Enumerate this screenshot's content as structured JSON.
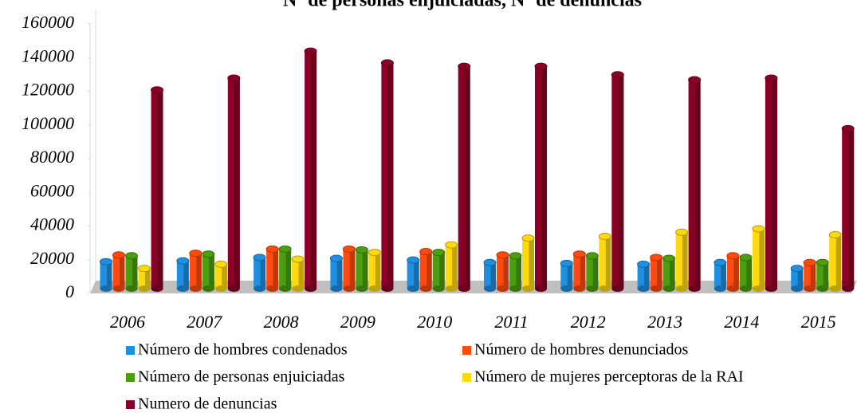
{
  "chart_data": {
    "type": "bar3d",
    "title": "Nº de personas enjuiciadas, Nº de denuncias",
    "categories": [
      "2006",
      "2007",
      "2008",
      "2009",
      "2010",
      "2011",
      "2012",
      "2013",
      "2014",
      "2015"
    ],
    "series": [
      {
        "name": "Número de hombres condenados",
        "color": "#1f8fe0",
        "values": [
          16000,
          16500,
          18500,
          18000,
          17000,
          15500,
          15000,
          14500,
          15500,
          12000
        ]
      },
      {
        "name": "Número de hombres denunciados",
        "color": "#ff4a10",
        "values": [
          20000,
          21000,
          23500,
          23500,
          22000,
          20000,
          20500,
          18500,
          19500,
          15500
        ]
      },
      {
        "name": "Número de personas enjuiciadas",
        "color": "#4a9e10",
        "values": [
          19500,
          20500,
          23500,
          23000,
          21500,
          19500,
          19500,
          18000,
          18500,
          15500
        ]
      },
      {
        "name": "Número de mujeres perceptoras de la RAI",
        "color": "#ffd910",
        "values": [
          12000,
          14500,
          17500,
          21500,
          26000,
          30000,
          31000,
          33500,
          35500,
          32000
        ]
      },
      {
        "name": "Numero de denuncias",
        "color": "#8a0026",
        "values": [
          118000,
          125000,
          141000,
          134000,
          132000,
          132000,
          127000,
          124000,
          125000,
          95000
        ]
      }
    ],
    "ylim": [
      0,
      160000
    ],
    "yticks": [
      0,
      20000,
      40000,
      60000,
      80000,
      100000,
      120000,
      140000,
      160000
    ],
    "legend": "bottom"
  }
}
